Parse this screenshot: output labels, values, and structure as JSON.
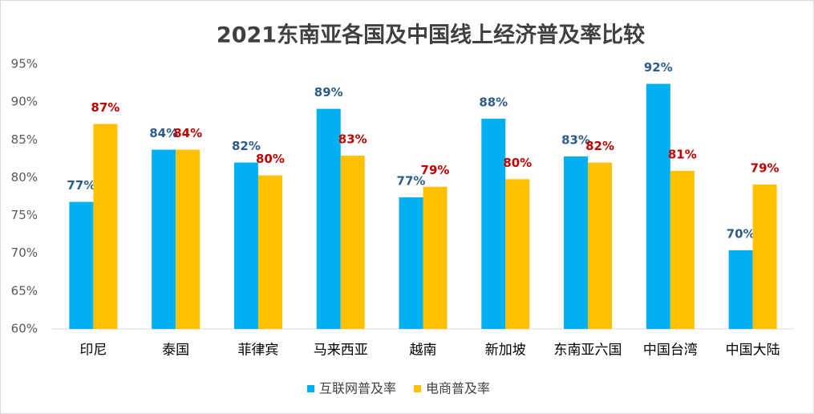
{
  "chart_data": {
    "type": "bar",
    "title": "2021东南亚各国及中国线上经济普及率比较",
    "categories": [
      "印尼",
      "泰国",
      "菲律宾",
      "马来西亚",
      "越南",
      "新加坡",
      "东南亚六国",
      "中国台湾",
      "中国大陆"
    ],
    "series": [
      {
        "name": "互联网普及率",
        "color": "#00b0f0",
        "label_color": "#2e5c8a",
        "values": [
          76.8,
          83.7,
          82.0,
          89.1,
          77.4,
          87.8,
          82.8,
          92.4,
          70.4
        ],
        "value_labels": [
          "77%",
          "84%",
          "82%",
          "89%",
          "77%",
          "88%",
          "83%",
          "92%",
          "70%"
        ]
      },
      {
        "name": "电商普及率",
        "color": "#ffc000",
        "label_color": "#c00000",
        "values": [
          87.1,
          83.7,
          80.3,
          82.9,
          78.8,
          79.8,
          82.0,
          80.9,
          79.1
        ],
        "value_labels": [
          "87%",
          "84%",
          "80%",
          "83%",
          "79%",
          "80%",
          "82%",
          "81%",
          "79%"
        ]
      }
    ],
    "ylim": [
      60,
      95
    ],
    "yticks": [
      {
        "value": 60,
        "label": "60%"
      },
      {
        "value": 65,
        "label": "65%"
      },
      {
        "value": 70,
        "label": "70%"
      },
      {
        "value": 75,
        "label": "75%"
      },
      {
        "value": 80,
        "label": "80%"
      },
      {
        "value": 85,
        "label": "85%"
      },
      {
        "value": 90,
        "label": "90%"
      },
      {
        "value": 95,
        "label": "95%"
      }
    ],
    "grid": false
  }
}
